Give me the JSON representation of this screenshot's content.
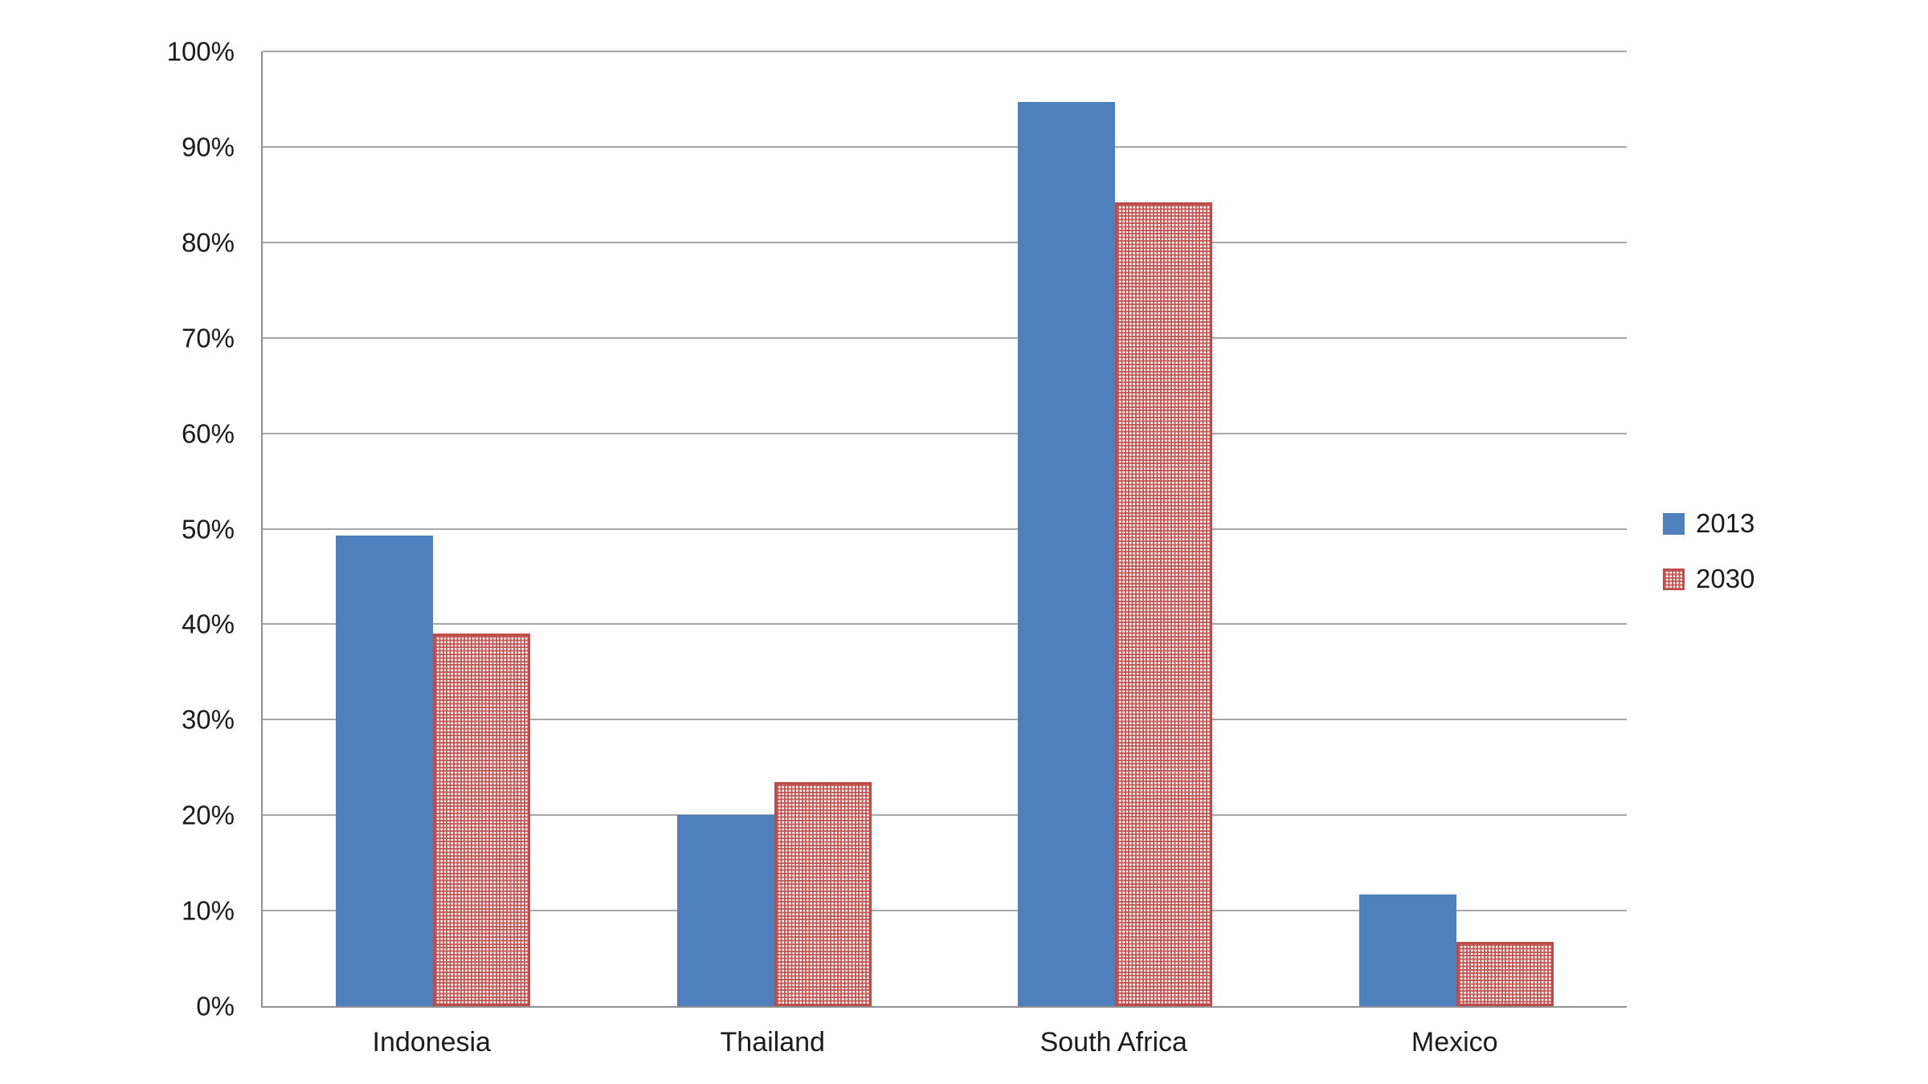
{
  "chart_data": {
    "type": "bar",
    "title": "",
    "xlabel": "",
    "ylabel": "",
    "categories": [
      "Indonesia",
      "Thailand",
      "South Africa",
      "Mexico"
    ],
    "series": [
      {
        "name": "2013",
        "style": "solid",
        "color": "#4e80bd",
        "values": [
          49.3,
          20.0,
          94.7,
          11.7
        ]
      },
      {
        "name": "2030",
        "style": "grid-pattern",
        "color": "#c0504d",
        "values": [
          39.0,
          23.5,
          84.2,
          6.7
        ]
      }
    ],
    "ylim": [
      0,
      100
    ],
    "ytick_step": 10,
    "yticks": [
      "100%",
      "90%",
      "80%",
      "70%",
      "60%",
      "50%",
      "40%",
      "30%",
      "20%",
      "10%",
      "0%"
    ],
    "grid": true,
    "legend_position": "right"
  },
  "legend": {
    "items": [
      {
        "label": "2013",
        "swatch": "solid-blue-square-icon"
      },
      {
        "label": "2030",
        "swatch": "red-grid-pattern-square-icon"
      }
    ]
  },
  "colors": {
    "series_2013": "#4e80bd",
    "series_2030": "#c0504d",
    "gridline": "#a6a6a6",
    "axis": "#909090",
    "text": "#1b1b1b",
    "background": "#ffffff"
  }
}
